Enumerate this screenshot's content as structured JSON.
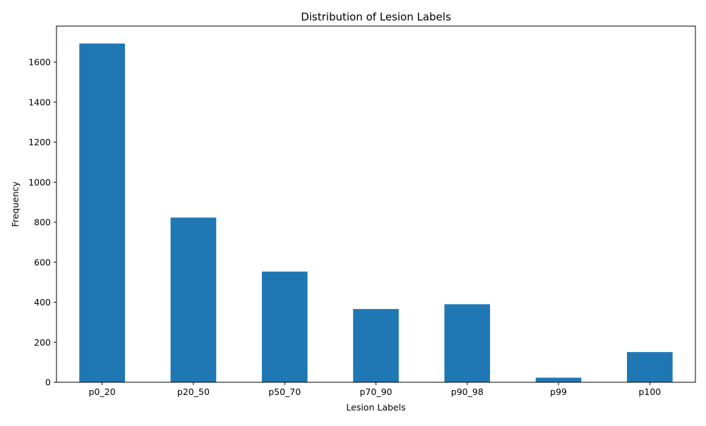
{
  "chart_data": {
    "type": "bar",
    "title": "Distribution of Lesion Labels",
    "xlabel": "Lesion Labels",
    "ylabel": "Frequency",
    "categories": [
      "p0_20",
      "p20_50",
      "p50_70",
      "p70_90",
      "p90_98",
      "p99",
      "p100"
    ],
    "values": [
      1693,
      823,
      553,
      366,
      390,
      23,
      151
    ],
    "ylim": [
      0,
      1780
    ],
    "yticks": [
      0,
      200,
      400,
      600,
      800,
      1000,
      1200,
      1400,
      1600
    ],
    "grid": false,
    "legend": "none",
    "bar_color": "#1f77b4"
  }
}
